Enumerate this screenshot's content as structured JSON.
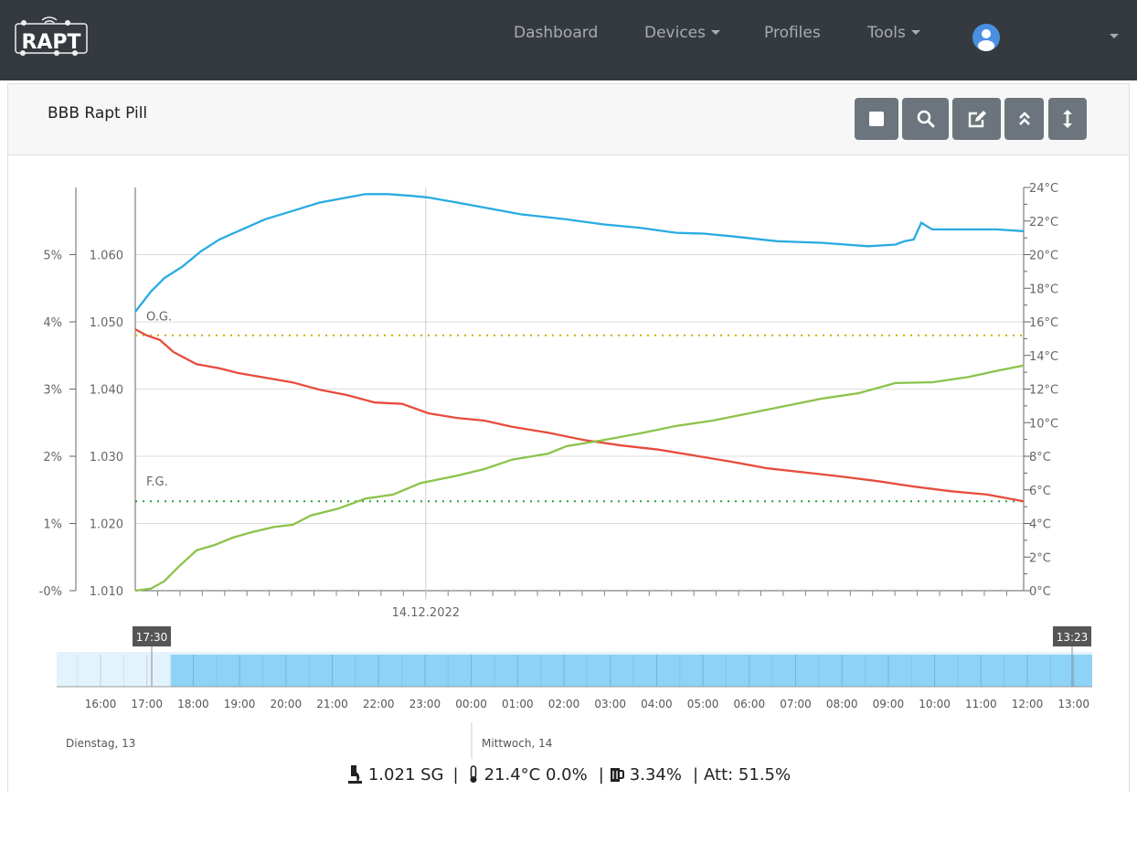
{
  "nav": {
    "brand": "RAPT",
    "items": [
      {
        "label": "Dashboard"
      },
      {
        "label": "Devices"
      },
      {
        "label": "Profiles"
      },
      {
        "label": "Tools"
      }
    ]
  },
  "card": {
    "title": "BBB Rapt Pill"
  },
  "toolbar": {
    "icons": [
      "stop-icon",
      "search-icon",
      "edit-icon",
      "collapse-icon",
      "resize-vertical-icon"
    ]
  },
  "colors": {
    "temperature": "#29abe2",
    "gravity": "#e74c3c",
    "abv": "#8bc34a",
    "og": "#c9b000",
    "fg": "#2e9d3a"
  },
  "chart_data": {
    "type": "line",
    "x_unit": "hours since 17:30 (13.12.2022)",
    "x_label": "14.12.2022",
    "left_axis_pct": {
      "ticks": [
        "-0%",
        "1%",
        "2%",
        "3%",
        "4%",
        "5%"
      ]
    },
    "left_axis_sg": {
      "ticks": [
        "1.010",
        "1.020",
        "1.030",
        "1.040",
        "1.050",
        "1.060"
      ],
      "ylim": [
        1.01,
        1.07
      ]
    },
    "right_axis_temp": {
      "ticks": [
        "0°C",
        "2°C",
        "4°C",
        "6°C",
        "8°C",
        "10°C",
        "12°C",
        "14°C",
        "16°C",
        "18°C",
        "20°C",
        "22°C",
        "24°C"
      ],
      "ylim": [
        0,
        24
      ]
    },
    "og": {
      "label": "O.G.",
      "value": 1.048
    },
    "fg": {
      "label": "F.G.",
      "value": 1.0233
    },
    "series": [
      {
        "name": "Temperature",
        "axis": "temp",
        "x": [
          0,
          0.35,
          0.65,
          1.06,
          1.47,
          1.88,
          2.39,
          2.9,
          3.52,
          4.13,
          4.74,
          5.15,
          5.66,
          6.18,
          6.56,
          7.2,
          7.81,
          8.63,
          9.65,
          10.47,
          11.29,
          12.1,
          12.72,
          13.33,
          14.36,
          15.38,
          16.4,
          17.01,
          17.22,
          17.42,
          17.59,
          17.83,
          18.45,
          19.26,
          19.88
        ],
        "y": [
          16.6,
          17.8,
          18.6,
          19.3,
          20.2,
          20.9,
          21.5,
          22.1,
          22.6,
          23.1,
          23.4,
          23.6,
          23.6,
          23.5,
          23.4,
          23.1,
          22.8,
          22.4,
          22.1,
          21.8,
          21.6,
          21.3,
          21.25,
          21.1,
          20.8,
          20.7,
          20.5,
          20.6,
          20.8,
          20.9,
          21.9,
          21.5,
          21.5,
          21.5,
          21.4
        ]
      },
      {
        "name": "Gravity",
        "axis": "sg",
        "x": [
          0,
          0.25,
          0.55,
          0.86,
          1.37,
          1.88,
          2.29,
          2.9,
          3.52,
          4.13,
          4.74,
          5.36,
          5.97,
          6.56,
          7.2,
          7.81,
          8.43,
          9.24,
          10.06,
          10.88,
          11.7,
          12.52,
          13.33,
          14.15,
          14.97,
          15.79,
          16.61,
          17.42,
          18.24,
          19.06,
          19.88
        ],
        "y": [
          1.0489,
          1.048,
          1.0473,
          1.0455,
          1.0437,
          1.0431,
          1.0424,
          1.0417,
          1.041,
          1.0399,
          1.0391,
          1.038,
          1.0378,
          1.0364,
          1.0357,
          1.0353,
          1.0344,
          1.0335,
          1.0324,
          1.0316,
          1.031,
          1.0301,
          1.0292,
          1.0282,
          1.0276,
          1.027,
          1.0263,
          1.0255,
          1.0248,
          1.0243,
          1.0233
        ]
      },
      {
        "name": "ABV",
        "axis": "pct",
        "x": [
          0,
          0.35,
          0.65,
          0.96,
          1.37,
          1.78,
          2.19,
          2.6,
          3.11,
          3.52,
          3.93,
          4.54,
          5.15,
          5.77,
          6.38,
          7.2,
          7.81,
          8.43,
          9.24,
          9.65,
          10.47,
          11.29,
          12.1,
          12.92,
          13.74,
          14.56,
          15.38,
          16.2,
          17.01,
          17.83,
          18.65,
          19.26,
          19.88
        ],
        "y": [
          0,
          0.03,
          0.14,
          0.35,
          0.6,
          0.68,
          0.79,
          0.87,
          0.95,
          0.98,
          1.12,
          1.22,
          1.37,
          1.43,
          1.6,
          1.71,
          1.81,
          1.95,
          2.04,
          2.15,
          2.24,
          2.34,
          2.45,
          2.53,
          2.64,
          2.75,
          2.86,
          2.94,
          3.09,
          3.1,
          3.18,
          3.27,
          3.35
        ]
      }
    ]
  },
  "navigator": {
    "start_label": "17:30",
    "end_label": "13:23",
    "hours": [
      "16:00",
      "17:00",
      "18:00",
      "19:00",
      "20:00",
      "21:00",
      "22:00",
      "23:00",
      "00:00",
      "01:00",
      "02:00",
      "03:00",
      "04:00",
      "05:00",
      "06:00",
      "07:00",
      "08:00",
      "09:00",
      "10:00",
      "11:00",
      "12:00",
      "13:00"
    ],
    "days": [
      "Dienstag, 13",
      "Mittwoch, 14"
    ]
  },
  "status": {
    "sg": "1.021 SG",
    "temp": "21.4°C 0.0%",
    "abv": "3.34%",
    "att": "Att: 51.5%",
    "sep": "|"
  }
}
